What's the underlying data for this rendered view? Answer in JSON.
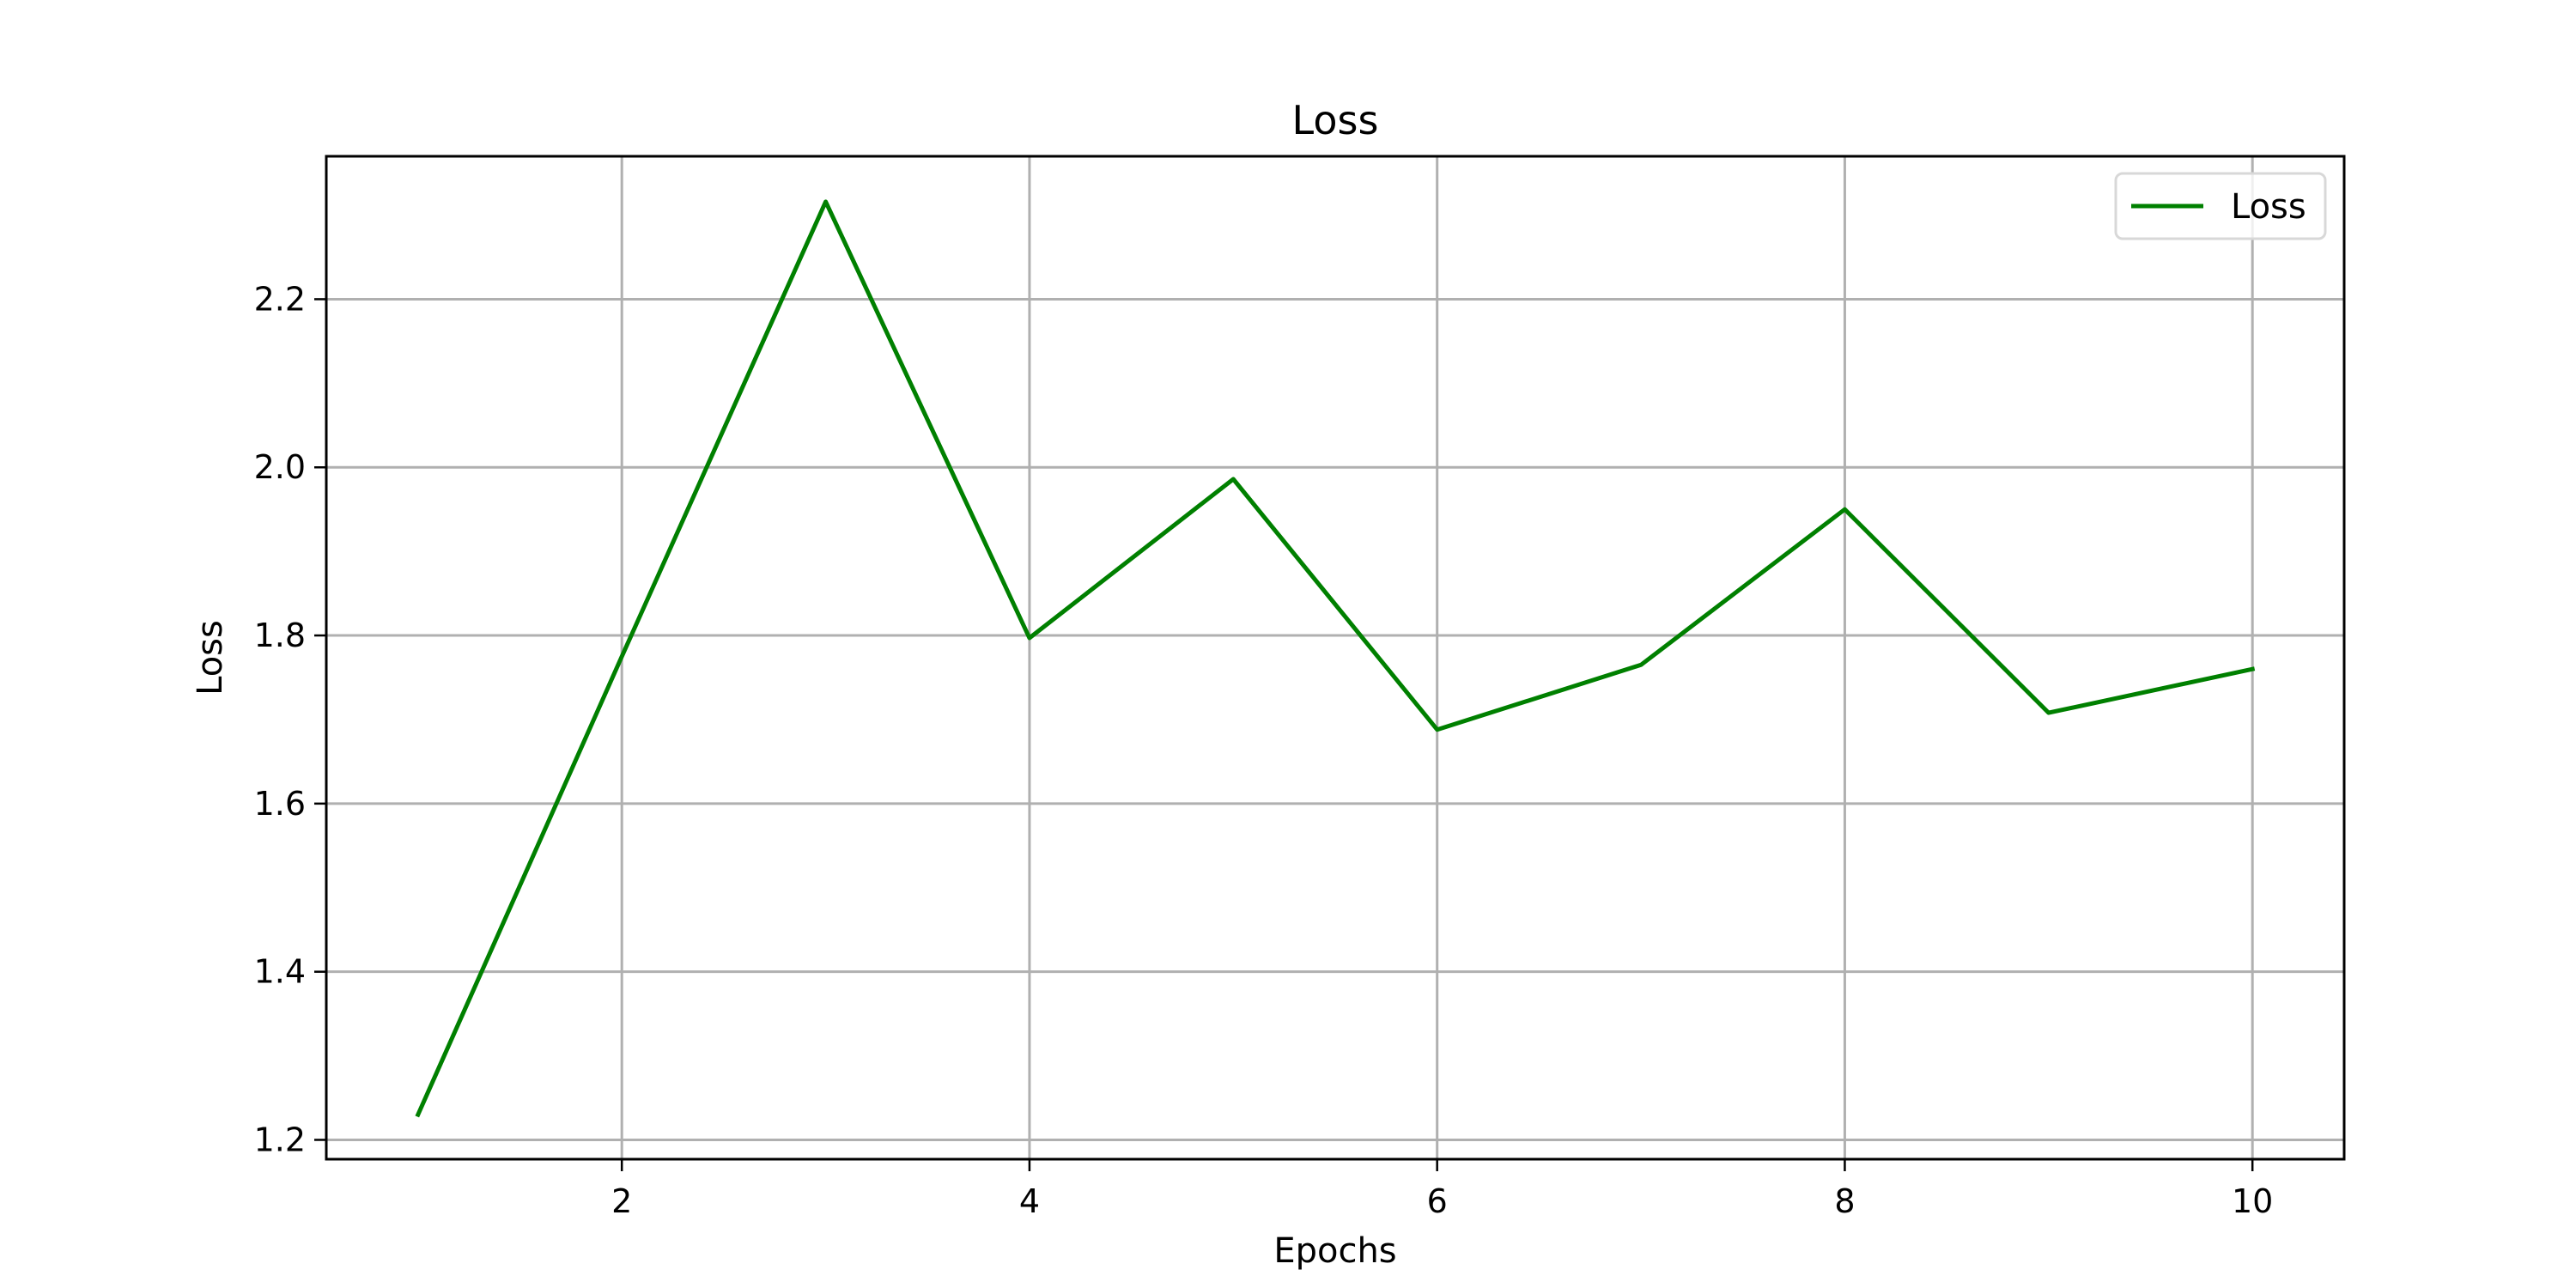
{
  "chart_data": {
    "type": "line",
    "title": "Loss",
    "xlabel": "Epochs",
    "ylabel": "Loss",
    "xlim": [
      0.55,
      10.45
    ],
    "ylim": [
      1.177,
      2.37
    ],
    "xticks": [
      2,
      4,
      6,
      8,
      10
    ],
    "yticks": [
      1.2,
      1.4,
      1.6,
      1.8,
      2.0,
      2.2
    ],
    "xtick_labels": [
      "2",
      "4",
      "6",
      "8",
      "10"
    ],
    "ytick_labels": [
      "1.2",
      "1.4",
      "1.6",
      "1.8",
      "2.0",
      "2.2"
    ],
    "grid": true,
    "legend_position": "top-right",
    "series": [
      {
        "name": "Loss",
        "color": "#008000",
        "x": [
          1,
          2,
          3,
          4,
          5,
          6,
          7,
          8,
          9,
          10
        ],
        "y": [
          1.23,
          1.775,
          2.316,
          1.797,
          1.986,
          1.688,
          1.765,
          1.95,
          1.708,
          1.76
        ]
      }
    ]
  }
}
